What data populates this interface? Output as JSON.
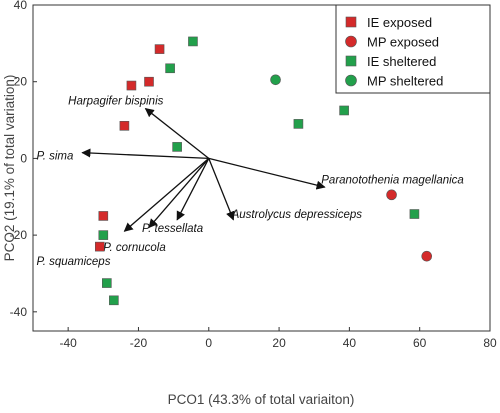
{
  "chart_data": {
    "type": "scatter",
    "xlabel": "PCO1 (43.3% of total variaiton)",
    "ylabel": "PCO2 (19.1% of total variation)",
    "xlim": [
      -50,
      80
    ],
    "ylim": [
      -45,
      40
    ],
    "xticks": [
      -40,
      -20,
      0,
      20,
      40,
      60,
      80
    ],
    "yticks": [
      -40,
      -20,
      0,
      20,
      40
    ],
    "grid": false,
    "legend_position": "top-right",
    "series": [
      {
        "name": "IE exposed",
        "marker": "square",
        "color": "#d42a2a",
        "points": [
          {
            "x": -14,
            "y": 28.5
          },
          {
            "x": -17,
            "y": 20
          },
          {
            "x": -22,
            "y": 19
          },
          {
            "x": -24,
            "y": 8.5
          },
          {
            "x": -30,
            "y": -15
          },
          {
            "x": -31,
            "y": -23
          }
        ]
      },
      {
        "name": "MP exposed",
        "marker": "circle",
        "color": "#d42a2a",
        "points": [
          {
            "x": 52,
            "y": -9.5
          },
          {
            "x": 62,
            "y": -25.5
          }
        ]
      },
      {
        "name": "IE sheltered",
        "marker": "square",
        "color": "#22a04b",
        "points": [
          {
            "x": -4.5,
            "y": 30.5
          },
          {
            "x": -11,
            "y": 23.5
          },
          {
            "x": -9,
            "y": 3
          },
          {
            "x": 25.5,
            "y": 9
          },
          {
            "x": 38.5,
            "y": 12.5
          },
          {
            "x": 58.5,
            "y": -14.5
          },
          {
            "x": -30,
            "y": -20
          },
          {
            "x": -29,
            "y": -32.5
          },
          {
            "x": -27,
            "y": -37
          }
        ]
      },
      {
        "name": "MP sheltered",
        "marker": "circle",
        "color": "#22a04b",
        "points": [
          {
            "x": 19,
            "y": 20.5
          }
        ]
      }
    ],
    "vectors": [
      {
        "label": "Harpagifer bispinis",
        "x": -18,
        "y": 13
      },
      {
        "label": "P. sima",
        "x": -36,
        "y": 1.5
      },
      {
        "label": "Paranotothenia magellanica",
        "x": 33,
        "y": -7.5
      },
      {
        "label": "Austrolycus depressiceps",
        "x": 7,
        "y": -16
      },
      {
        "label": "P. tessellata",
        "x": -9,
        "y": -16
      },
      {
        "label": "P. cornucola",
        "x": -17,
        "y": -18
      },
      {
        "label": "P. squamiceps",
        "x": -24,
        "y": -19
      }
    ],
    "vector_label_positions": [
      {
        "x": -40,
        "y": 14
      },
      {
        "x": -49,
        "y": -0.3
      },
      {
        "x": 32,
        "y": -6.5
      },
      {
        "x": 6.5,
        "y": -15.5
      },
      {
        "x": -19,
        "y": -19.2
      },
      {
        "x": -30,
        "y": -24.2
      },
      {
        "x": -49,
        "y": -27.8
      }
    ]
  }
}
